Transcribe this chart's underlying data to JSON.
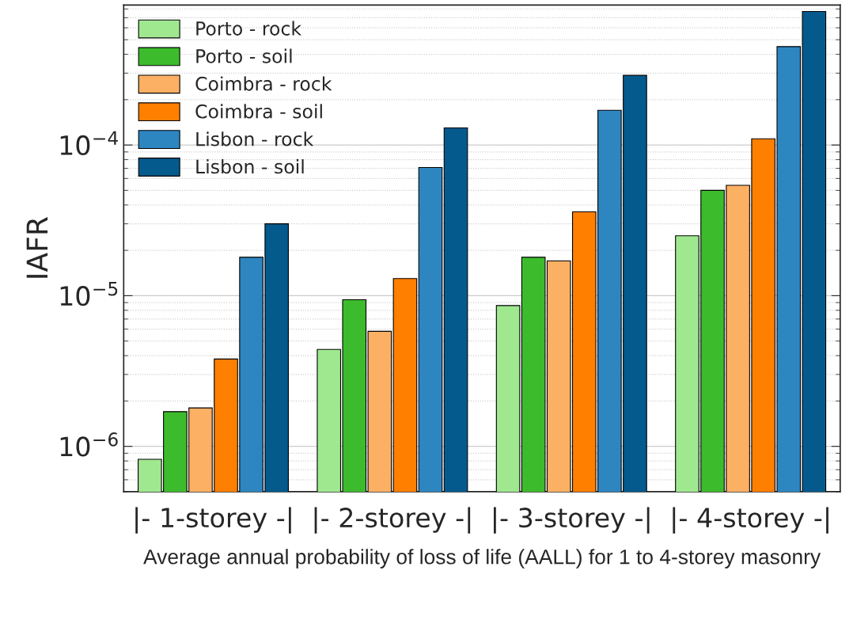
{
  "chart_data": {
    "type": "bar",
    "xlabel": "Average annual probability of loss of life (AALL) for 1 to 4-storey masonry",
    "ylabel": "IAFR",
    "categories": [
      "|- 1-storey -|",
      "|- 2-storey -|",
      "|- 3-storey -|",
      "|- 4-storey -|"
    ],
    "series": [
      {
        "name": "Porto - rock",
        "color": "#a0e890",
        "values": [
          8.2e-07,
          4.4e-06,
          8.6e-06,
          2.5e-05
        ]
      },
      {
        "name": "Porto - soil",
        "color": "#3cbc2c",
        "values": [
          1.7e-06,
          9.4e-06,
          1.8e-05,
          5e-05
        ]
      },
      {
        "name": "Coimbra - rock",
        "color": "#fcb064",
        "values": [
          1.8e-06,
          5.8e-06,
          1.7e-05,
          5.4e-05
        ]
      },
      {
        "name": "Coimbra - soil",
        "color": "#ff7f00",
        "values": [
          3.8e-06,
          1.3e-05,
          3.6e-05,
          0.00011
        ]
      },
      {
        "name": "Lisbon - rock",
        "color": "#2e86c1",
        "values": [
          1.8e-05,
          7.1e-05,
          0.00017,
          0.00045
        ]
      },
      {
        "name": "Lisbon - soil",
        "color": "#045a8d",
        "values": [
          3e-05,
          0.00013,
          0.00029,
          0.00077
        ]
      }
    ],
    "log": "y",
    "ylim": [
      5e-07,
      0.00085
    ],
    "yticks": [
      {
        "value": 1e-06,
        "label": "10$^{−6}$"
      },
      {
        "value": 1e-05,
        "label": "10$^{−5}$"
      },
      {
        "value": 0.0001,
        "label": "10$^{−4}$"
      }
    ],
    "grid": "y",
    "legend": "top left"
  }
}
